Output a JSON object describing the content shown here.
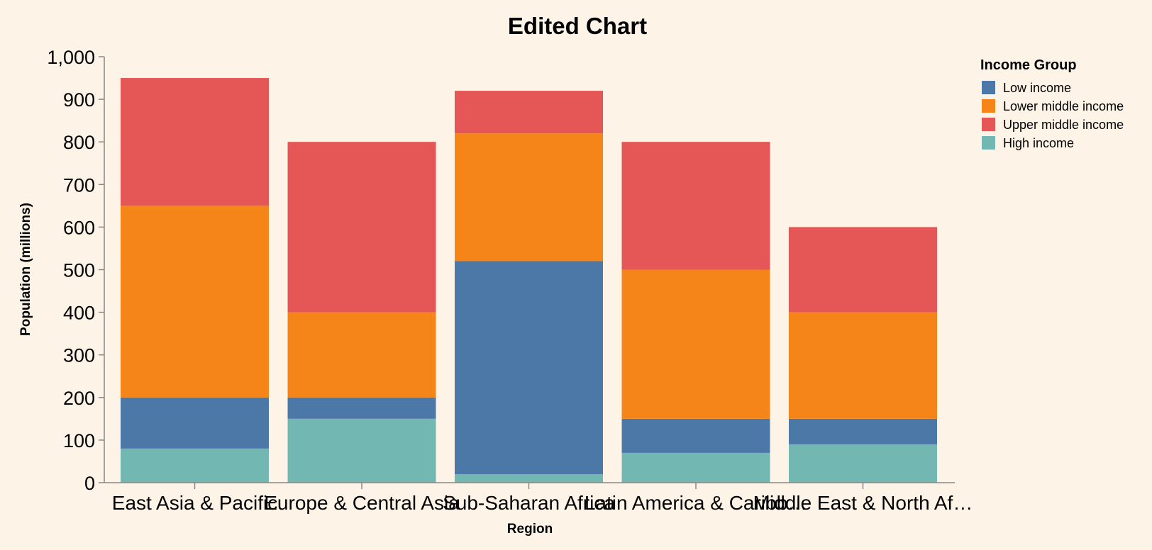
{
  "chart_data": {
    "type": "bar",
    "stacked": true,
    "title": "Edited Chart",
    "xlabel": "Region",
    "ylabel": "Population (millions)",
    "ylim": [
      0,
      1000
    ],
    "yticks": [
      0,
      100,
      200,
      300,
      400,
      500,
      600,
      700,
      800,
      900,
      1000
    ],
    "ytick_labels": [
      "0",
      "100",
      "200",
      "300",
      "400",
      "500",
      "600",
      "700",
      "800",
      "900",
      "1,000"
    ],
    "categories": [
      "East Asia & Pacific",
      "Europe & Central Asia",
      "Sub-Saharan Africa",
      "Latin America & Caribbean",
      "Middle East & North Africa"
    ],
    "category_labels": [
      "East Asia & Pacific",
      "Europe & Central Asia",
      "Sub-Saharan Africa",
      "Latin America & Caribb…",
      "Middle East & North Af…"
    ],
    "grid": false,
    "legend": {
      "title": "Income Group",
      "position": "top-right"
    },
    "stack_order": [
      "High income",
      "Low income",
      "Lower middle income",
      "Upper middle income"
    ],
    "series": [
      {
        "name": "Low income",
        "color": "#4c78a8",
        "values": [
          120,
          50,
          500,
          80,
          60
        ]
      },
      {
        "name": "Lower middle income",
        "color": "#f58518",
        "values": [
          450,
          200,
          300,
          350,
          250
        ]
      },
      {
        "name": "Upper middle income",
        "color": "#e45756",
        "values": [
          300,
          400,
          100,
          300,
          200
        ]
      },
      {
        "name": "High income",
        "color": "#72b7b2",
        "values": [
          80,
          150,
          20,
          70,
          90
        ]
      }
    ]
  }
}
